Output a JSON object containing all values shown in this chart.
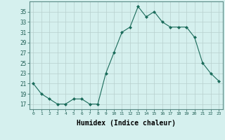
{
  "x": [
    0,
    1,
    2,
    3,
    4,
    5,
    6,
    7,
    8,
    9,
    10,
    11,
    12,
    13,
    14,
    15,
    16,
    17,
    18,
    19,
    20,
    21,
    22,
    23
  ],
  "y": [
    21,
    19,
    18,
    17,
    17,
    18,
    18,
    17,
    17,
    23,
    27,
    31,
    32,
    36,
    34,
    35,
    33,
    32,
    32,
    32,
    30,
    25,
    23,
    21.5
  ],
  "line_color": "#1a6b5a",
  "marker": "D",
  "marker_size": 2,
  "bg_color": "#d5f0ee",
  "grid_color": "#b8d0ce",
  "xlabel": "Humidex (Indice chaleur)",
  "xlabel_fontsize": 7,
  "yticks": [
    17,
    19,
    21,
    23,
    25,
    27,
    29,
    31,
    33,
    35
  ],
  "ylim": [
    16,
    37
  ],
  "xlim": [
    -0.5,
    23.5
  ],
  "xtick_labels": [
    "0",
    "1",
    "2",
    "3",
    "4",
    "5",
    "6",
    "7",
    "8",
    "9",
    "10",
    "11",
    "12",
    "13",
    "14",
    "15",
    "16",
    "17",
    "18",
    "19",
    "20",
    "21",
    "22",
    "23"
  ]
}
